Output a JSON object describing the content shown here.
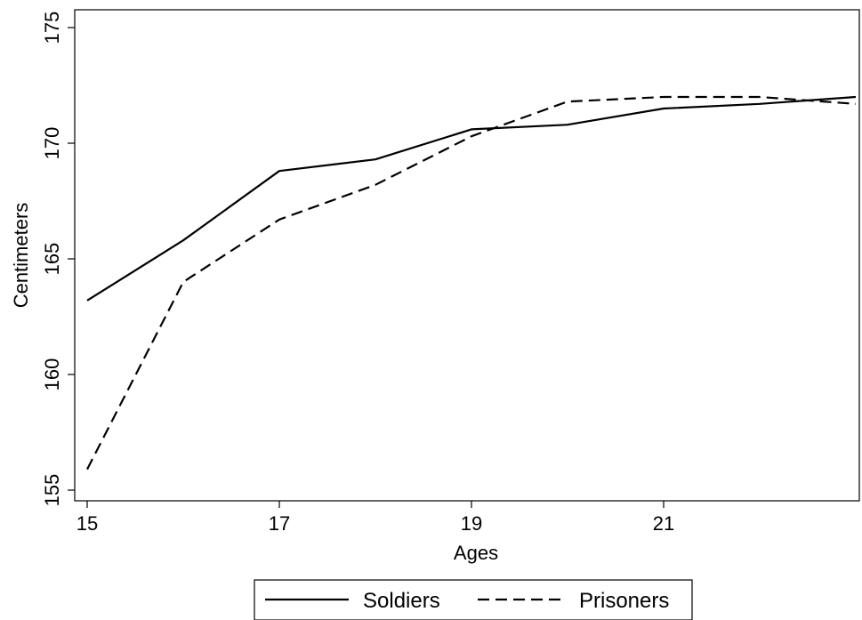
{
  "chart_data": {
    "type": "line",
    "xlabel": "Ages",
    "ylabel": "Centimeters",
    "xlim": [
      15,
      23.0
    ],
    "ylim": [
      155,
      175
    ],
    "xticks": [
      "15",
      "17",
      "19",
      "21"
    ],
    "yticks": [
      "155",
      "160",
      "165",
      "170",
      "175"
    ],
    "grid": false,
    "legend_position": "bottom",
    "series": [
      {
        "name": "Soldiers",
        "style": "solid",
        "color": "#000000",
        "x": [
          15,
          16,
          17,
          18,
          19,
          20,
          21,
          22,
          23
        ],
        "y": [
          163.2,
          165.8,
          168.8,
          169.3,
          170.6,
          170.8,
          171.5,
          171.7,
          172.0
        ]
      },
      {
        "name": "Prisoners",
        "style": "dashed",
        "color": "#000000",
        "x": [
          15,
          16,
          17,
          18,
          19,
          20,
          21,
          22,
          23
        ],
        "y": [
          155.9,
          164.0,
          166.7,
          168.2,
          170.3,
          171.8,
          172.0,
          172.0,
          171.7
        ]
      }
    ]
  }
}
